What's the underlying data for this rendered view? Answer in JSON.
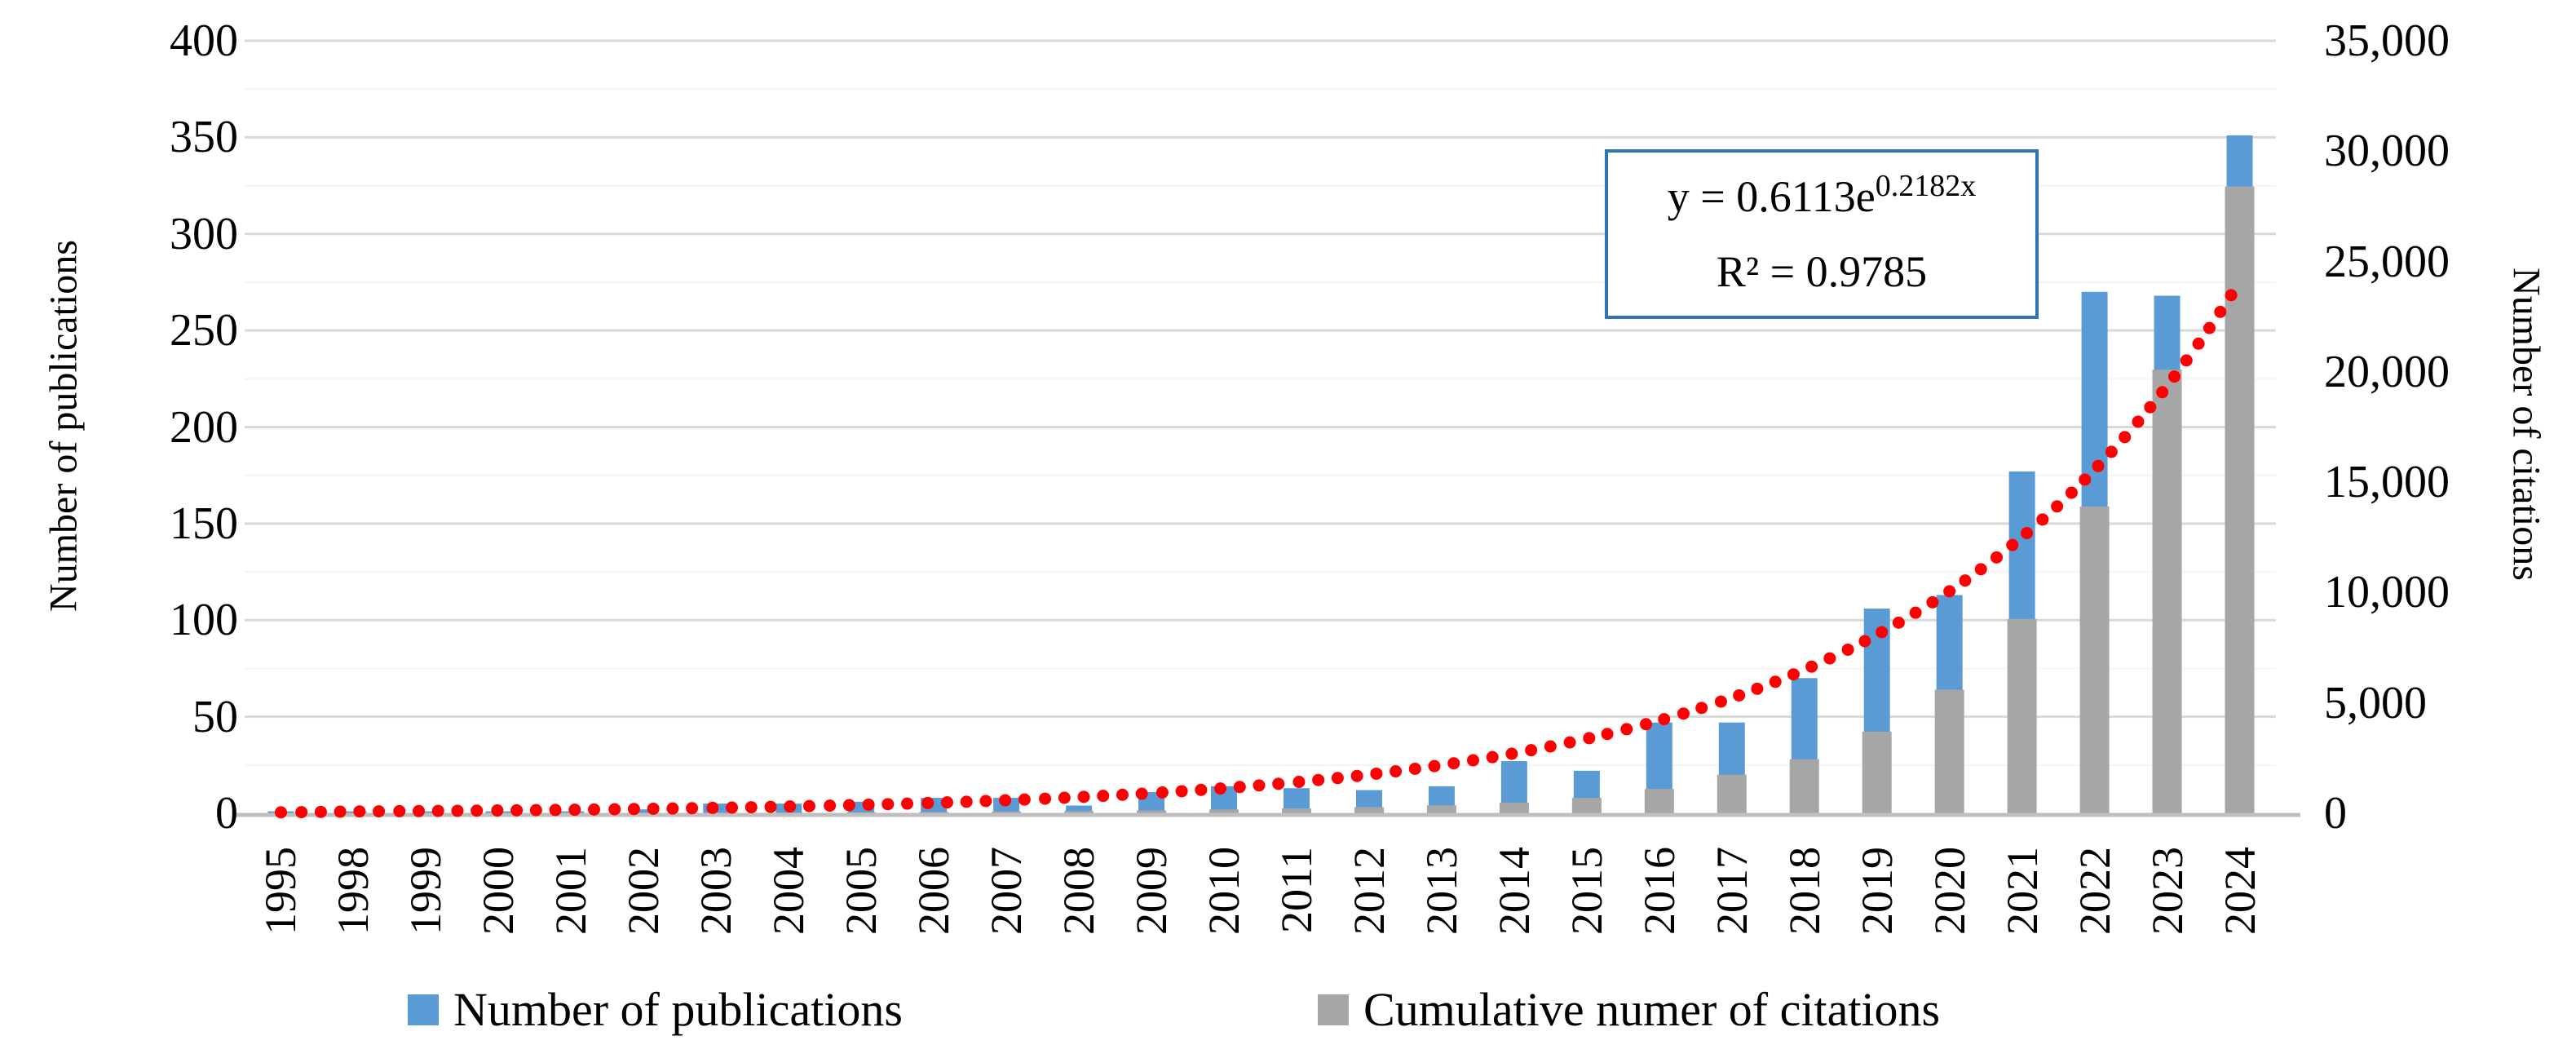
{
  "figure": {
    "left_axis_title": "Number of publications",
    "right_axis_title": "Number of citations"
  },
  "axes": {
    "left": {
      "tick_labels": [
        "400",
        "350",
        "300",
        "250",
        "200",
        "150",
        "100",
        "50",
        "0"
      ],
      "tick_values": [
        400,
        350,
        300,
        250,
        200,
        150,
        100,
        50,
        0
      ]
    },
    "right": {
      "tick_labels": [
        "35,000",
        "30,000",
        "25,000",
        "20,000",
        "15,000",
        "10,000",
        "5,000",
        "0"
      ],
      "tick_values": [
        35000,
        30000,
        25000,
        20000,
        15000,
        10000,
        5000,
        0
      ]
    }
  },
  "annotation": {
    "equation_prefix": "y = 0.6113e",
    "equation_exponent": "0.2182x",
    "r_squared": "R² = 0.9785"
  },
  "legend": {
    "items": [
      {
        "label": "Number of publications",
        "color": "#5B9BD5"
      },
      {
        "label": "Cumulative numer of citations",
        "color": "#A6A6A6"
      }
    ]
  },
  "colors": {
    "publications": "#5B9BD5",
    "citations": "#A6A6A6",
    "trendline": "#FF0000",
    "gridline_major": "#D9D9D9",
    "gridline_minor": "#F4F4F4",
    "axis_line": "#BFBFBF",
    "annotation_border": "#2E75B6"
  },
  "chart_data": {
    "type": "bar",
    "title": "",
    "xlabel": "",
    "left_ylabel": "Number of publications",
    "right_ylabel": "Number of citations",
    "left_ylim": [
      0,
      400
    ],
    "right_ylim": [
      0,
      35000
    ],
    "grid": true,
    "legend_position": "bottom",
    "categories": [
      "1995",
      "1998",
      "1999",
      "2000",
      "2001",
      "2002",
      "2003",
      "2004",
      "2005",
      "2006",
      "2007",
      "2008",
      "2009",
      "2010",
      "2011",
      "2012",
      "2013",
      "2014",
      "2015",
      "2016",
      "2017",
      "2018",
      "2019",
      "2020",
      "2021",
      "2022",
      "2023",
      "2024"
    ],
    "series": [
      {
        "name": "Number of publications",
        "axis": "left",
        "color": "#5B9BD5",
        "values": [
          1,
          1,
          1,
          1,
          1,
          2,
          5,
          5,
          6,
          8,
          8,
          4,
          11,
          14,
          13,
          12,
          14,
          27,
          22,
          47,
          47,
          70,
          106,
          113,
          177,
          270,
          268,
          351
        ]
      },
      {
        "name": "Cumulative numer of citations",
        "axis": "right",
        "color": "#A6A6A6",
        "values": [
          0,
          0,
          0,
          0,
          5,
          10,
          20,
          30,
          45,
          60,
          80,
          100,
          130,
          170,
          220,
          280,
          360,
          480,
          700,
          1100,
          1750,
          2450,
          3700,
          5600,
          8800,
          13900,
          20100,
          28400
        ]
      }
    ],
    "trendline": {
      "type": "exponential",
      "a": 0.6113,
      "b": 0.2182,
      "x_definition": "year - 1996",
      "axis": "left",
      "color": "#FF0000",
      "style": "dotted",
      "equation": "y = 0.6113e^(0.2182x)",
      "r_squared": 0.9785
    }
  }
}
